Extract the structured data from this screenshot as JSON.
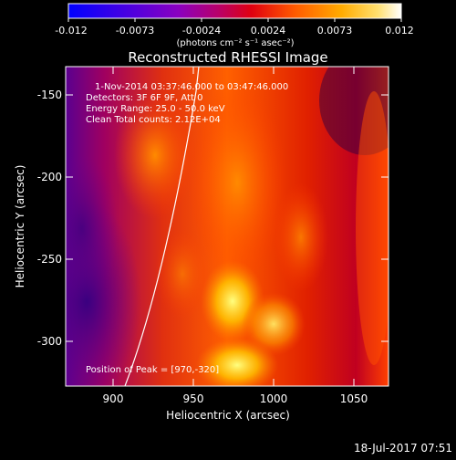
{
  "colorbar": {
    "ticks": [
      "-0.012",
      "-0.0073",
      "-0.0024",
      "0.0024",
      "0.0073",
      "0.012"
    ],
    "unit_label": "(photons cm⁻² s⁻¹ asec⁻²)"
  },
  "title": "Reconstructed RHESSI Image",
  "annotations": {
    "time_range": "1-Nov-2014 03:37:46.000 to 03:47:46.000",
    "detectors": "Detectors: 3F 6F 9F, Att 0",
    "energy": "Energy Range: 25.0 - 50.0 keV",
    "clean": "Clean     Total counts: 2.12E+04",
    "peak": "Position of Peak = [970,-320]"
  },
  "axes": {
    "xlabel": "Heliocentric X (arcsec)",
    "ylabel": "Heliocentric Y (arcsec)",
    "x_ticks": [
      "900",
      "950",
      "1000",
      "1050"
    ],
    "y_ticks": [
      "-150",
      "-200",
      "-250",
      "-300"
    ]
  },
  "timestamp": "18-Jul-2017 07:51",
  "colors": {
    "background": "#000000",
    "limb_line": "#ffffff"
  }
}
